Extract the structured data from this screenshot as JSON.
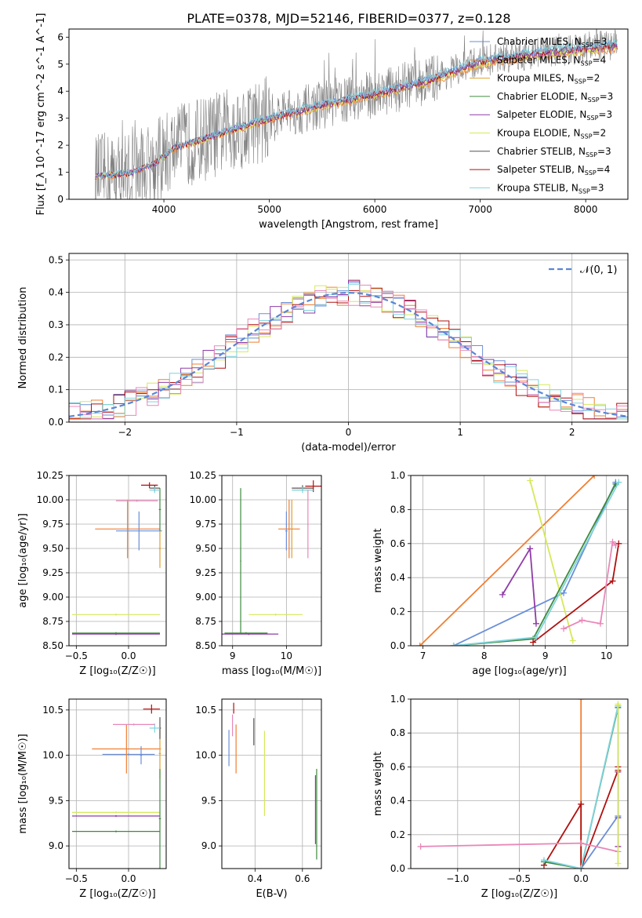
{
  "figure": {
    "title": "PLATE=0378, MJD=52146, FIBERID=0377, z=0.128"
  },
  "colors": {
    "grid": "#b0b0b0",
    "spectrum": "#808080",
    "normal_curve": "#5b86d4",
    "Chabrier MILES": "#6a8fd8",
    "Salpeter MILES": "#f07f33",
    "Kroupa MILES": "#e0a030",
    "Chabrier ELODIE": "#3d8a3d",
    "Salpeter ELODIE": "#8e3ca8",
    "Kroupa ELODIE": "#d6e85a",
    "Chabrier STELIB": "#555555",
    "Salpeter STELIB": "#b01010",
    "Kroupa STELIB": "#7fd3dd",
    "pink": "#e888b8"
  },
  "legend_entries": [
    {
      "label": "Chabrier MILES, N",
      "sub": "SSP",
      "suffix": "=3",
      "key": "Chabrier MILES"
    },
    {
      "label": "Salpeter MILES, N",
      "sub": "SSP",
      "suffix": "=4",
      "key": "Salpeter MILES"
    },
    {
      "label": "Kroupa MILES, N",
      "sub": "SSP",
      "suffix": "=2",
      "key": "Kroupa MILES"
    },
    {
      "label": "Chabrier ELODIE, N",
      "sub": "SSP",
      "suffix": "=3",
      "key": "Chabrier ELODIE"
    },
    {
      "label": "Salpeter ELODIE, N",
      "sub": "SSP",
      "suffix": "=3",
      "key": "Salpeter ELODIE"
    },
    {
      "label": "Kroupa ELODIE, N",
      "sub": "SSP",
      "suffix": "=2",
      "key": "Kroupa ELODIE"
    },
    {
      "label": "Chabrier STELIB, N",
      "sub": "SSP",
      "suffix": "=3",
      "key": "Chabrier STELIB"
    },
    {
      "label": "Salpeter STELIB, N",
      "sub": "SSP",
      "suffix": "=4",
      "key": "Salpeter STELIB"
    },
    {
      "label": "Kroupa STELIB, N",
      "sub": "SSP",
      "suffix": "=3",
      "key": "Kroupa STELIB"
    }
  ],
  "chart_data": [
    {
      "id": "spectrum",
      "type": "line",
      "xlabel": "wavelength [Angstrom, rest frame]",
      "ylabel": "Flux [f_λ 10^-17 erg cm^-2 s^-1 A^-1]",
      "xlim": [
        3100,
        8400
      ],
      "ylim": [
        0,
        6.3
      ],
      "xticks": [
        4000,
        5000,
        6000,
        7000,
        8000
      ],
      "yticks": [
        0,
        1,
        2,
        3,
        4,
        5,
        6
      ],
      "legend": "top-right",
      "model_trend": {
        "x": [
          3350,
          3500,
          3700,
          3900,
          4100,
          4500,
          5000,
          5500,
          6000,
          6500,
          7000,
          7500,
          8000,
          8300
        ],
        "y": [
          0.85,
          0.9,
          1.0,
          1.3,
          1.9,
          2.4,
          3.0,
          3.5,
          3.9,
          4.4,
          5.1,
          5.4,
          5.6,
          5.7
        ]
      },
      "grid": false
    },
    {
      "id": "residuals",
      "type": "line",
      "xlabel": "(data-model)/error",
      "ylabel": "Normed distribution",
      "xlim": [
        -2.5,
        2.5
      ],
      "ylim": [
        0,
        0.52
      ],
      "xticks": [
        -2,
        -1,
        0,
        1,
        2
      ],
      "yticks": [
        0.0,
        0.1,
        0.2,
        0.3,
        0.4,
        0.5
      ],
      "legend": "top-right",
      "legend_label": "𝒩(0, 1)",
      "bin_width": 0.1,
      "grid": true
    },
    {
      "id": "age_vs_Z",
      "type": "scatter",
      "xlabel": "Z [log₁₀(Z/Z☉)]",
      "ylabel": "age  [log₁₀(age/yr)]",
      "xlim": [
        -0.57,
        0.36
      ],
      "ylim": [
        8.5,
        10.25
      ],
      "xticks": [
        -0.5,
        0.0
      ],
      "yticks": [
        8.5,
        8.75,
        9.0,
        9.25,
        9.5,
        9.75,
        10.0,
        10.25
      ],
      "grid": true,
      "points": [
        {
          "key": "Chabrier MILES",
          "x": 0.1,
          "xerr": 0.22,
          "y": 9.68,
          "yerr": 0.2
        },
        {
          "key": "Salpeter MILES",
          "x": -0.01,
          "xerr": 0.31,
          "y": 9.7,
          "yerr": 0.3
        },
        {
          "key": "Kroupa MILES",
          "x": 0.3,
          "xerr": 0.01,
          "y": 9.5,
          "yerr": 0.2
        },
        {
          "key": "Chabrier ELODIE",
          "x": 0.3,
          "xerr": 0.01,
          "y": 9.9,
          "yerr": 0.22
        },
        {
          "key": "Salpeter ELODIE",
          "x": -0.12,
          "xerr": 0.42,
          "y": 8.62,
          "yerr": 0.01
        },
        {
          "key": "Kroupa ELODIE",
          "x": -0.12,
          "xerr": 0.42,
          "y": 8.82,
          "yerr": 0.01
        },
        {
          "key": "Chabrier STELIB",
          "x": 0.25,
          "xerr": 0.05,
          "y": 10.12,
          "yerr": 0.03
        },
        {
          "key": "Salpeter STELIB",
          "x": 0.2,
          "xerr": 0.08,
          "y": 10.15,
          "yerr": 0.03
        },
        {
          "key": "Kroupa STELIB",
          "x": 0.25,
          "xerr": 0.05,
          "y": 10.1,
          "yerr": 0.03
        },
        {
          "key": "pink",
          "x": 0.08,
          "xerr": 0.2,
          "y": 9.99,
          "yerr": 0.01
        },
        {
          "key": "Chabrier ELODIE",
          "x": -0.12,
          "xerr": 0.42,
          "y": 8.63,
          "yerr": 0.01
        }
      ]
    },
    {
      "id": "age_vs_mass",
      "type": "scatter",
      "xlabel": "mass [log₁₀(M/M☉)]",
      "ylabel": "",
      "xlim": [
        8.8,
        10.65
      ],
      "ylim": [
        8.5,
        10.25
      ],
      "xticks": [
        9,
        10
      ],
      "yticks": [
        8.5,
        8.75,
        9.0,
        9.25,
        9.5,
        9.75,
        10.0,
        10.25
      ],
      "grid": true,
      "points": [
        {
          "key": "Chabrier MILES",
          "x": 10.0,
          "xerr": 0.02,
          "y": 9.68,
          "yerr": 0.2
        },
        {
          "key": "Salpeter MILES",
          "x": 10.05,
          "xerr": 0.2,
          "y": 9.7,
          "yerr": 0.3
        },
        {
          "key": "Kroupa MILES",
          "x": 10.1,
          "xerr": 0.02,
          "y": 9.7,
          "yerr": 0.3
        },
        {
          "key": "Chabrier ELODIE",
          "x": 9.15,
          "xerr": 0.01,
          "y": 9.37,
          "yerr": 0.75
        },
        {
          "key": "Salpeter ELODIE",
          "x": 9.3,
          "xerr": 0.55,
          "y": 8.62,
          "yerr": 0.01
        },
        {
          "key": "Kroupa ELODIE",
          "x": 9.8,
          "xerr": 0.5,
          "y": 8.82,
          "yerr": 0.01
        },
        {
          "key": "Chabrier STELIB",
          "x": 10.3,
          "xerr": 0.2,
          "y": 10.12,
          "yerr": 0.03
        },
        {
          "key": "Salpeter STELIB",
          "x": 10.5,
          "xerr": 0.15,
          "y": 10.14,
          "yerr": 0.06
        },
        {
          "key": "Kroupa STELIB",
          "x": 10.3,
          "xerr": 0.2,
          "y": 10.1,
          "yerr": 0.03
        },
        {
          "key": "pink",
          "x": 10.4,
          "xerr": 0.01,
          "y": 9.75,
          "yerr": 0.35
        },
        {
          "key": "Chabrier ELODIE",
          "x": 9.25,
          "xerr": 0.4,
          "y": 8.63,
          "yerr": 0.01
        }
      ]
    },
    {
      "id": "weight_vs_age",
      "type": "line",
      "xlabel": "age  [log₁₀(age/yr)]",
      "ylabel": "mass weight",
      "xlim": [
        6.8,
        10.35
      ],
      "ylim": [
        0,
        1
      ],
      "xticks": [
        7,
        8,
        9,
        10
      ],
      "yticks": [
        0.0,
        0.2,
        0.4,
        0.6,
        0.8,
        1.0
      ],
      "grid": true,
      "series": [
        {
          "key": "Salpeter MILES",
          "x": [
            6.95,
            9.8
          ],
          "y": [
            0.0,
            1.0
          ]
        },
        {
          "key": "Chabrier MILES",
          "x": [
            7.5,
            9.3,
            10.15
          ],
          "y": [
            0.0,
            0.31,
            0.96
          ]
        },
        {
          "key": "Kroupa ELODIE",
          "x": [
            8.75,
            9.45
          ],
          "y": [
            0.97,
            0.03
          ]
        },
        {
          "key": "Salpeter ELODIE",
          "x": [
            8.3,
            8.75,
            8.85
          ],
          "y": [
            0.3,
            0.57,
            0.13
          ]
        },
        {
          "key": "Chabrier ELODIE",
          "x": [
            7.5,
            8.8,
            10.15
          ],
          "y": [
            0.0,
            0.04,
            0.95
          ]
        },
        {
          "key": "Salpeter STELIB",
          "x": [
            8.8,
            10.1,
            10.2
          ],
          "y": [
            0.02,
            0.38,
            0.6
          ]
        },
        {
          "key": "Kroupa STELIB",
          "x": [
            7.5,
            8.85,
            10.2
          ],
          "y": [
            0.0,
            0.05,
            0.96
          ]
        },
        {
          "key": "pink",
          "x": [
            9.3,
            9.6,
            9.9,
            10.1,
            10.15
          ],
          "y": [
            0.1,
            0.15,
            0.13,
            0.61,
            0.59
          ]
        }
      ]
    },
    {
      "id": "mass_vs_Z",
      "type": "scatter",
      "xlabel": "Z [log₁₀(Z/Z☉)]",
      "ylabel": "mass [log₁₀(M/M☉)]",
      "xlim": [
        -0.57,
        0.36
      ],
      "ylim": [
        8.75,
        10.62
      ],
      "xticks": [
        -0.5,
        0.0
      ],
      "yticks": [
        9.0,
        9.5,
        10.0,
        10.5
      ],
      "grid": true,
      "points": [
        {
          "key": "Chabrier MILES",
          "x": 0.0,
          "xerr": 0.25,
          "y": 10.01,
          "yerr": 0.01
        },
        {
          "key": "Salpeter MILES",
          "x": -0.02,
          "xerr": 0.33,
          "y": 10.07,
          "yerr": 0.27
        },
        {
          "key": "Kroupa MILES",
          "x": 0.3,
          "xerr": 0.01,
          "y": 10.02,
          "yerr": 0.28
        },
        {
          "key": "Chabrier ELODIE",
          "x": -0.12,
          "xerr": 0.42,
          "y": 9.16,
          "yerr": 0.01
        },
        {
          "key": "Salpeter ELODIE",
          "x": -0.12,
          "xerr": 0.42,
          "y": 9.33,
          "yerr": 0.01
        },
        {
          "key": "Kroupa ELODIE",
          "x": -0.12,
          "xerr": 0.42,
          "y": 9.37,
          "yerr": 0.01
        },
        {
          "key": "Chabrier STELIB",
          "x": 0.3,
          "xerr": 0.01,
          "y": 10.3,
          "yerr": 0.12
        },
        {
          "key": "Salpeter STELIB",
          "x": 0.22,
          "xerr": 0.08,
          "y": 10.51,
          "yerr": 0.05
        },
        {
          "key": "Kroupa STELIB",
          "x": 0.25,
          "xerr": 0.05,
          "y": 10.3,
          "yerr": 0.05
        },
        {
          "key": "pink",
          "x": 0.05,
          "xerr": 0.2,
          "y": 10.34,
          "yerr": 0.01
        },
        {
          "key": "Chabrier MILES",
          "x": 0.12,
          "xerr": 0.01,
          "y": 10.0,
          "yerr": 0.1
        },
        {
          "key": "Chabrier ELODIE",
          "x": 0.3,
          "xerr": 0.01,
          "y": 9.3,
          "yerr": 0.55
        }
      ]
    },
    {
      "id": "mass_vs_ebv",
      "type": "scatter",
      "xlabel": "E(B-V)",
      "ylabel": "",
      "xlim": [
        0.26,
        0.68
      ],
      "ylim": [
        8.75,
        10.62
      ],
      "xticks": [
        0.4,
        0.6
      ],
      "yticks": [
        9.0,
        9.5,
        10.0,
        10.5
      ],
      "grid": true,
      "points": [
        {
          "key": "Chabrier MILES",
          "x": 0.29,
          "xerr": 0.0,
          "y": 10.08,
          "yerr": 0.2
        },
        {
          "key": "pink",
          "x": 0.305,
          "xerr": 0.0,
          "y": 10.33,
          "yerr": 0.12
        },
        {
          "key": "Salpeter MILES",
          "x": 0.32,
          "xerr": 0.0,
          "y": 10.07,
          "yerr": 0.27
        },
        {
          "key": "Salpeter STELIB",
          "x": 0.31,
          "xerr": 0.0,
          "y": 10.52,
          "yerr": 0.06
        },
        {
          "key": "Chabrier STELIB",
          "x": 0.395,
          "xerr": 0.0,
          "y": 10.26,
          "yerr": 0.15
        },
        {
          "key": "Kroupa ELODIE",
          "x": 0.44,
          "xerr": 0.0,
          "y": 9.8,
          "yerr": 0.47
        },
        {
          "key": "Salpeter ELODIE",
          "x": 0.655,
          "xerr": 0.0,
          "y": 9.4,
          "yerr": 0.38
        },
        {
          "key": "Chabrier ELODIE",
          "x": 0.66,
          "xerr": 0.0,
          "y": 9.35,
          "yerr": 0.5
        }
      ]
    },
    {
      "id": "weight_vs_Z",
      "type": "line",
      "xlabel": "Z [log₁₀(Z/Z☉)]",
      "ylabel": "mass weight",
      "xlim": [
        -1.38,
        0.38
      ],
      "ylim": [
        0,
        1
      ],
      "xticks": [
        -1.0,
        -0.5,
        0.0
      ],
      "yticks": [
        0.0,
        0.2,
        0.4,
        0.6,
        0.8,
        1.0
      ],
      "grid": true,
      "series": [
        {
          "key": "Salpeter MILES",
          "x": [
            0.0,
            0.0
          ],
          "y": [
            0.0,
            1.0
          ]
        },
        {
          "key": "Chabrier MILES",
          "x": [
            0.0,
            0.3,
            0.3
          ],
          "y": [
            0.0,
            0.31,
            0.96
          ]
        },
        {
          "key": "Salpeter STELIB",
          "x": [
            -0.3,
            0.0,
            0.0,
            0.3,
            0.3
          ],
          "y": [
            0.02,
            0.38,
            0.0,
            0.58,
            0.6
          ]
        },
        {
          "key": "Salpeter ELODIE",
          "x": [
            0.3,
            0.3,
            0.3
          ],
          "y": [
            0.13,
            0.3,
            0.57
          ]
        },
        {
          "key": "Chabrier ELODIE",
          "x": [
            -0.3,
            0.0,
            0.3
          ],
          "y": [
            0.04,
            0.0,
            0.95
          ]
        },
        {
          "key": "Kroupa STELIB",
          "x": [
            -0.3,
            0.0,
            0.3
          ],
          "y": [
            0.05,
            0.0,
            0.96
          ]
        },
        {
          "key": "pink",
          "x": [
            -1.3,
            0.0,
            0.3
          ],
          "y": [
            0.13,
            0.15,
            0.1
          ]
        },
        {
          "key": "Kroupa ELODIE",
          "x": [
            0.3,
            0.3
          ],
          "y": [
            0.03,
            0.97
          ]
        }
      ]
    }
  ]
}
